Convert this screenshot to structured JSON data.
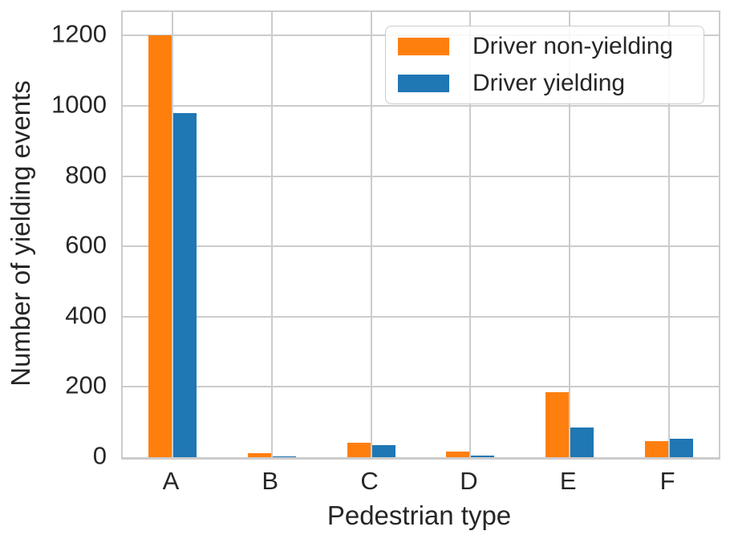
{
  "chart_data": {
    "type": "bar",
    "title": "",
    "xlabel": "Pedestrian type",
    "ylabel": "Number of yielding events",
    "categories": [
      "A",
      "B",
      "C",
      "D",
      "E",
      "F"
    ],
    "series": [
      {
        "name": "Driver non-yielding",
        "color": "#ff7f0e",
        "values": [
          1200,
          12,
          42,
          15,
          185,
          45
        ]
      },
      {
        "name": "Driver yielding",
        "color": "#1f77b4",
        "values": [
          980,
          2,
          35,
          5,
          85,
          53
        ]
      }
    ],
    "yticks": [
      0,
      200,
      400,
      600,
      800,
      1000,
      1200
    ],
    "ylim": [
      0,
      1267
    ],
    "grid": "both",
    "legend_position": "upper right",
    "colors": {
      "grid": "#cccccc",
      "text": "#262626",
      "background": "#ffffff"
    }
  }
}
